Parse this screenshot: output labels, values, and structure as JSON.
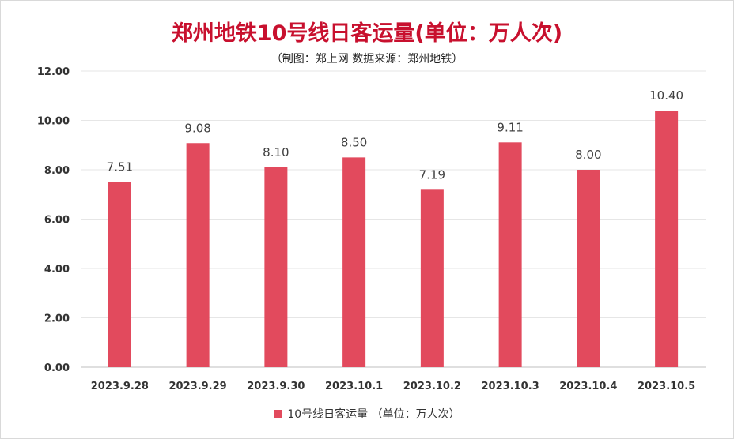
{
  "chart_data": {
    "type": "bar",
    "title": "郑州地铁10号线日客运量(单位：万人次)",
    "subtitle": "（制图：郑上网  数据来源：郑州地铁）",
    "categories": [
      "2023.9.28",
      "2023.9.29",
      "2023.9.30",
      "2023.10.1",
      "2023.10.2",
      "2023.10.3",
      "2023.10.4",
      "2023.10.5"
    ],
    "series": [
      {
        "name": "10号线日客运量  （单位：万人次）",
        "values": [
          7.51,
          9.08,
          8.1,
          8.5,
          7.19,
          9.11,
          8.0,
          10.4
        ],
        "data_labels": [
          "7.51",
          "9.08",
          "8.10",
          "8.50",
          "7.19",
          "9.11",
          "8.00",
          "10.40"
        ],
        "color": "#e24a5d"
      }
    ],
    "yticks": [
      "0.00",
      "2.00",
      "4.00",
      "6.00",
      "8.00",
      "10.00",
      "12.00"
    ],
    "ylim": [
      0,
      12
    ],
    "grid": true,
    "legend_position": "bottom"
  },
  "colors": {
    "title": "#c8102e",
    "bar": "#e24a5d",
    "grid": "#e6e6e6"
  }
}
